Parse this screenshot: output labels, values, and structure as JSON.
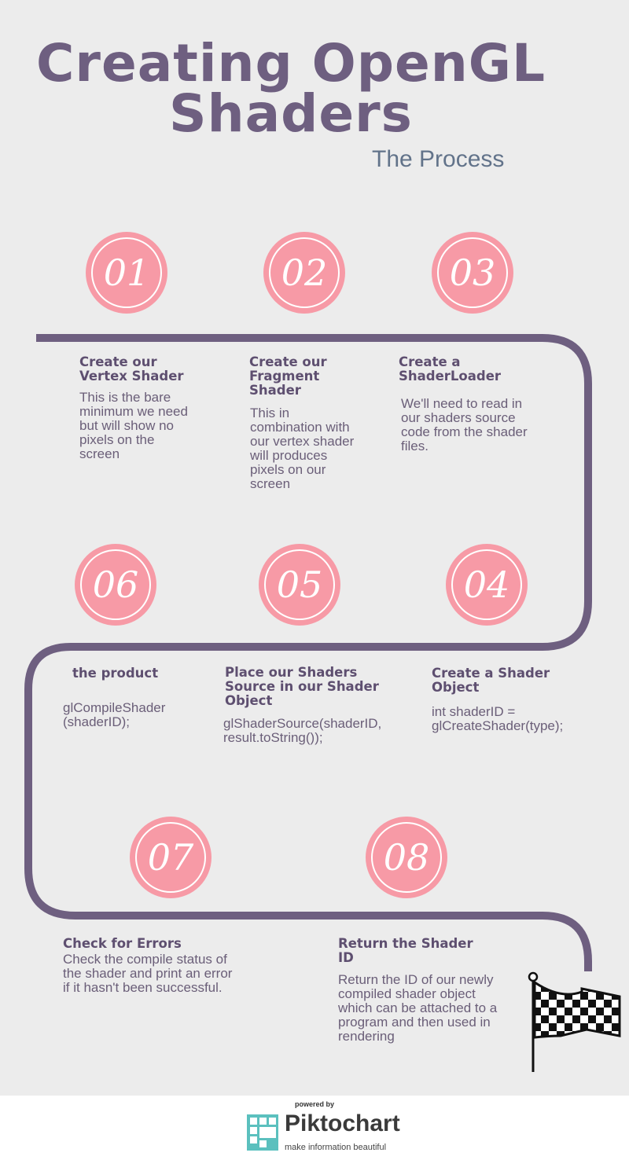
{
  "header": {
    "title_line1": "Creating OpenGL",
    "title_line2": "Shaders",
    "subtitle": "The Process"
  },
  "steps": [
    {
      "number": "01",
      "title": "Create our Vertex Shader",
      "body": "This is the bare minimum we need but will show no pixels on the screen"
    },
    {
      "number": "02",
      "title": "Create our Fragment Shader",
      "body": "This in combination with our vertex shader will produces pixels on our screen"
    },
    {
      "number": "03",
      "title": "Create a ShaderLoader",
      "body": "We'll need to read in our shaders source code from the shader files."
    },
    {
      "number": "04",
      "title": "Create a Shader Object",
      "body": "int shaderID = glCreateShader(type);"
    },
    {
      "number": "05",
      "title": "Place our Shaders Source in our Shader Object",
      "body": "glShaderSource(shaderID, result.toString());"
    },
    {
      "number": "06",
      "title": "the product",
      "body": "glCompileShader (shaderID);"
    },
    {
      "number": "07",
      "title": "Check for Errors",
      "body": "Check the compile status of the shader and print an error if it hasn't been successful."
    },
    {
      "number": "08",
      "title": "Return the Shader ID",
      "body": "Return the ID of our newly compiled shader object which can be attached to a program and then used in rendering"
    }
  ],
  "footer": {
    "powered_by": "powered by",
    "brand": "Piktochart",
    "tagline": "make information beautiful"
  },
  "colors": {
    "background": "#ececec",
    "path": "#6e5f80",
    "circle": "#f79aa6",
    "title": "#6e5f80"
  },
  "icons": [
    "checkered-flag-icon",
    "piktochart-logo-icon"
  ]
}
